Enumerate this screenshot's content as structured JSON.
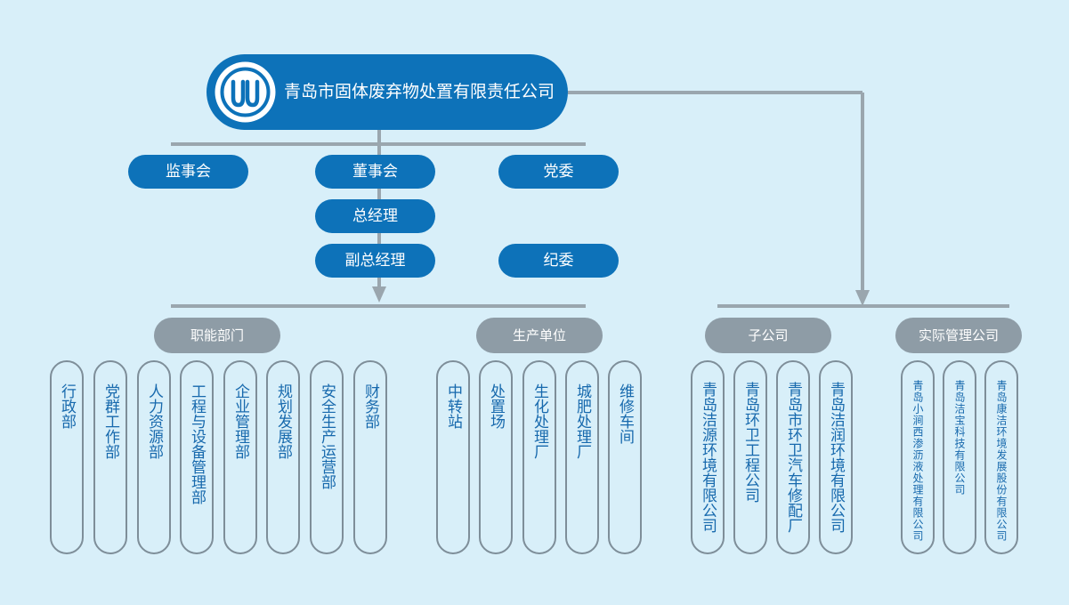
{
  "company": {
    "name": "青岛市固体废弃物处置有限责任公司"
  },
  "governance": {
    "supervisory_board": "监事会",
    "board_of_directors": "董事会",
    "party_committee": "党委",
    "general_manager": "总经理",
    "deputy_general_manager": "副总经理",
    "discipline_committee": "纪委"
  },
  "groups": {
    "functional": {
      "label": "职能部门",
      "items": [
        "行政部",
        "党群工作部",
        "人力资源部",
        "工程与设备管理部",
        "企业管理部",
        "规划发展部",
        "安全生产运营部",
        "财务部"
      ]
    },
    "production": {
      "label": "生产单位",
      "items": [
        "中转站",
        "处置场",
        "生化处理厂",
        "城肥处理厂",
        "维修车间"
      ]
    },
    "subsidiaries": {
      "label": "子公司",
      "items": [
        "青岛洁源环境有限公司",
        "青岛环卫工程公司",
        "青岛市环卫汽车修配厂",
        "青岛洁润环境有限公司"
      ]
    },
    "managed": {
      "label": "实际管理公司",
      "items": [
        "青岛小涧西渗沥液处理有限公司",
        "青岛洁宝科技有限公司",
        "青岛康洁环境发展股份有限公司"
      ]
    }
  },
  "colors": {
    "background": "#d8eff9",
    "primary_blue": "#0d72b9",
    "group_grey": "#8e9ca6",
    "connector_grey": "#9aa6ae",
    "box_text_blue": "#1769ad"
  }
}
